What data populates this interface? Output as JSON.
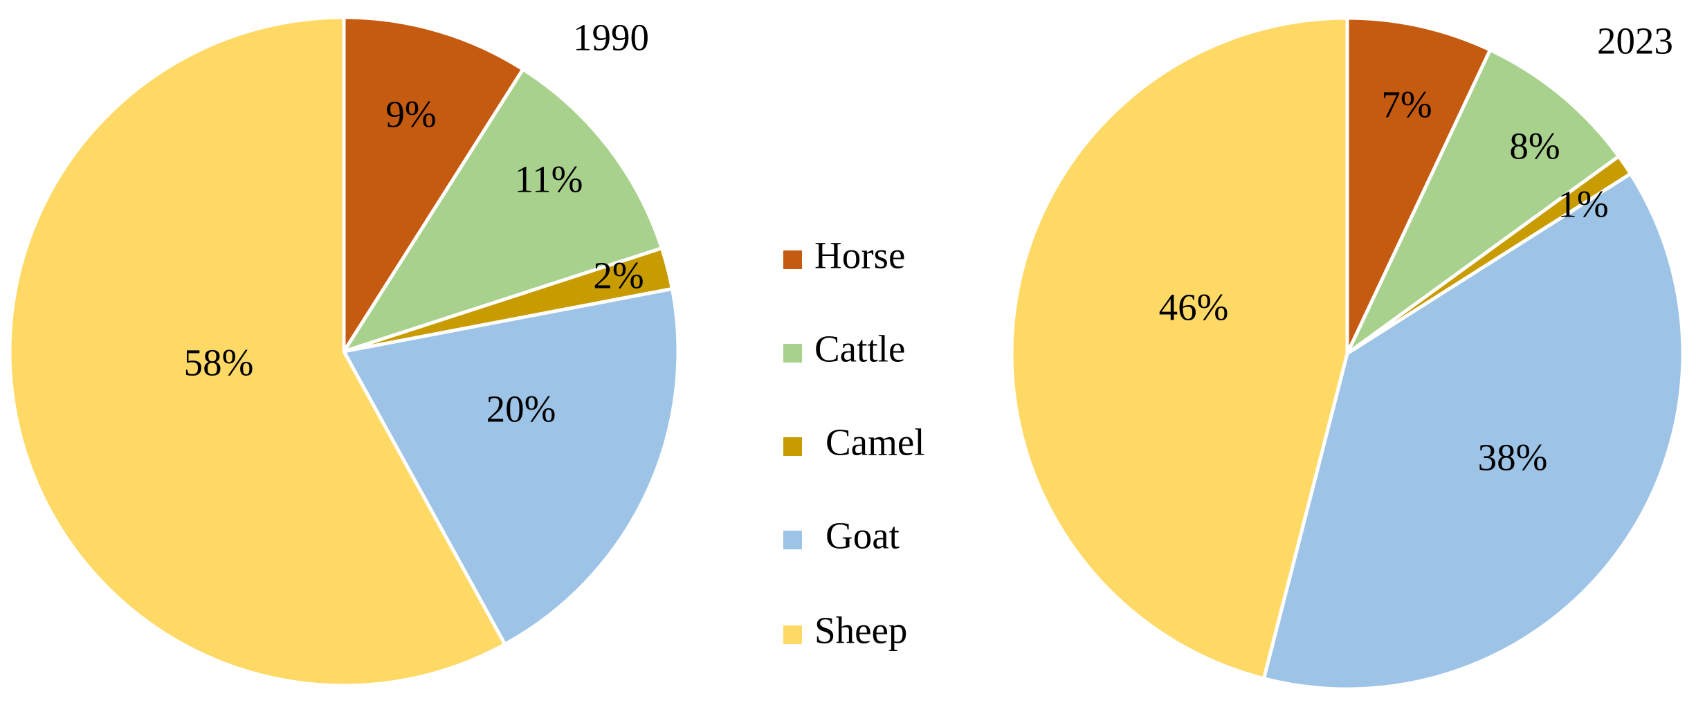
{
  "chart_data": [
    {
      "type": "pie",
      "title": "1990",
      "categories": [
        "Horse",
        "Cattle",
        "Camel",
        "Goat",
        "Sheep"
      ],
      "values": [
        9,
        11,
        2,
        20,
        58
      ],
      "labels": [
        "9%",
        "11%",
        "2%",
        "20%",
        "58%"
      ],
      "start_angle": "12 o'clock",
      "direction": "clockwise",
      "colors": [
        "#C55A11",
        "#A9D18E",
        "#C89B00",
        "#9DC3E6",
        "#FFD966"
      ]
    },
    {
      "type": "pie",
      "title": "2023",
      "categories": [
        "Horse",
        "Cattle",
        "Camel",
        "Goat",
        "Sheep"
      ],
      "values": [
        7,
        8,
        1,
        38,
        46
      ],
      "labels": [
        "7%",
        "8%",
        "1%",
        "38%",
        "46%"
      ],
      "start_angle": "12 o'clock",
      "direction": "clockwise",
      "colors": [
        "#C55A11",
        "#A9D18E",
        "#C89B00",
        "#9DC3E6",
        "#FFD966"
      ]
    }
  ],
  "legend": {
    "placement": "center",
    "items": [
      {
        "name": "Horse",
        "color": "#C55A11"
      },
      {
        "name": "Cattle",
        "color": "#A9D18E"
      },
      {
        "name": "Camel",
        "color": "#C89B00"
      },
      {
        "name": "Goat",
        "color": "#9DC3E6"
      },
      {
        "name": "Sheep",
        "color": "#FFD966"
      }
    ]
  }
}
